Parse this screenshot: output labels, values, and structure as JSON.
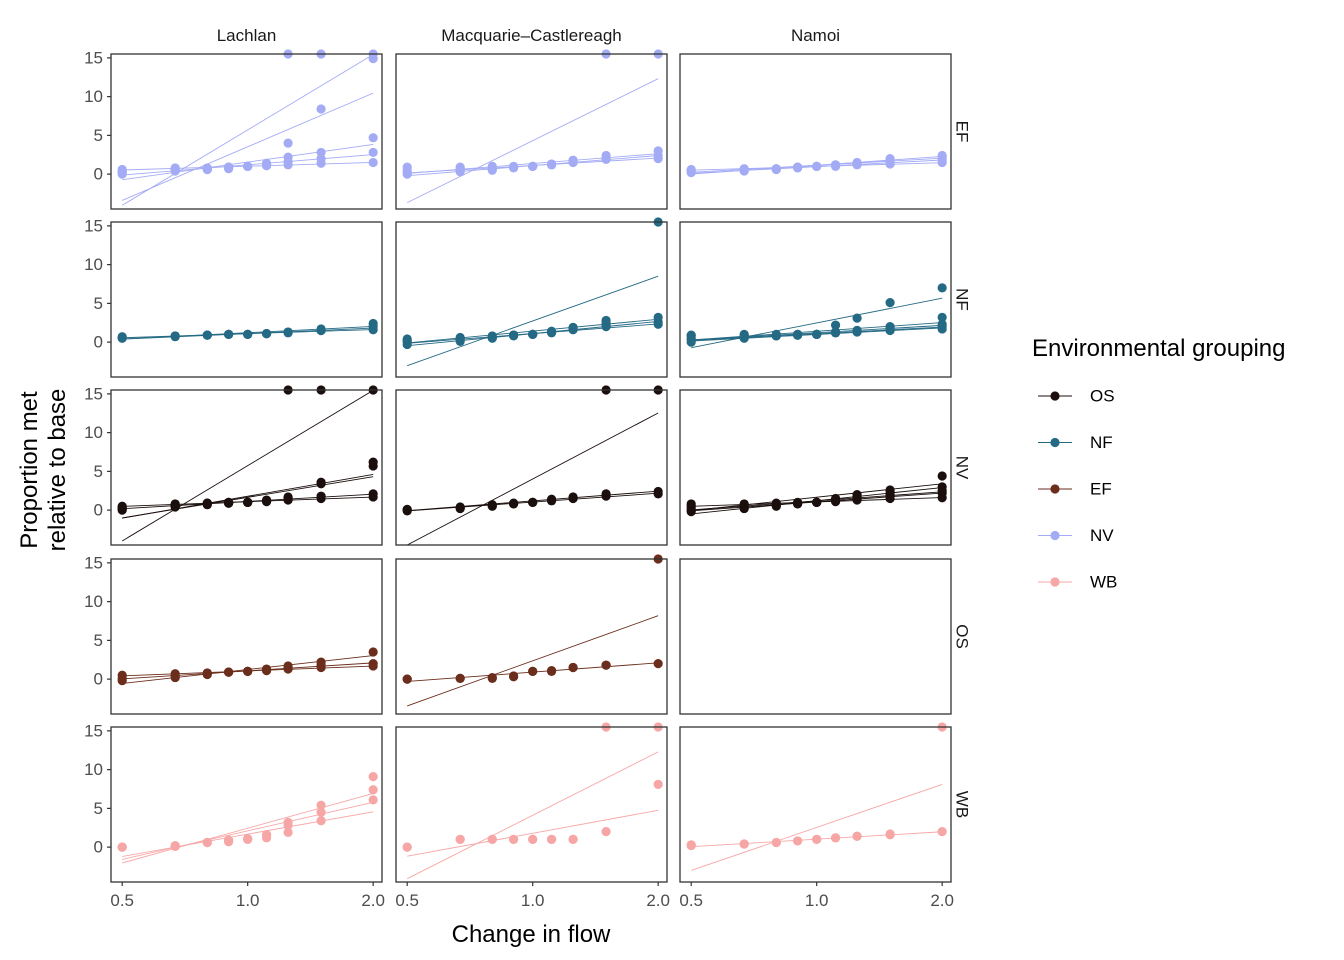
{
  "chart_data": {
    "type": "scatter",
    "facet_columns": [
      "Lachlan",
      "Macquarie–Castlereagh",
      "Namoi"
    ],
    "facet_rows": [
      "EF",
      "NF",
      "NV",
      "OS",
      "WB"
    ],
    "xlabel": "Change in flow",
    "ylabel_lines": [
      "Proportion met",
      "relative to base"
    ],
    "x_scale": "log",
    "xlim": [
      0.47,
      2.1
    ],
    "ylim": [
      -4.5,
      15.5
    ],
    "x_ticks": [
      0.5,
      1.0,
      2.0
    ],
    "x_tick_labels": [
      "0.5",
      "1.0",
      "2.0"
    ],
    "y_ticks": [
      0,
      5,
      10,
      15
    ],
    "y_tick_labels": [
      "0",
      "5",
      "10",
      "15"
    ],
    "x_values": [
      0.5,
      0.67,
      0.8,
      0.9,
      1.0,
      1.11,
      1.25,
      1.5,
      2.0
    ],
    "grid": false,
    "legend": {
      "title": "Environmental grouping",
      "placement": "right",
      "entries": [
        {
          "name": "OS",
          "color": "#1a0f0d"
        },
        {
          "name": "NF",
          "color": "#256a85"
        },
        {
          "name": "EF",
          "color": "#6b2d1c"
        },
        {
          "name": "NV",
          "color": "#a3abf5"
        },
        {
          "name": "WB",
          "color": "#f7a6a6"
        }
      ]
    },
    "panels": [
      {
        "row": "EF",
        "column": "Lachlan",
        "color": "#a3abf5",
        "series": [
          {
            "y": [
              0.6,
              0.8,
              0.7,
              0.9,
              1.0,
              1.1,
              1.2,
              1.4,
              1.5
            ]
          },
          {
            "y": [
              0.2,
              0.5,
              0.6,
              0.8,
              1.0,
              1.3,
              1.6,
              2.0,
              2.8
            ]
          },
          {
            "y": [
              0.0,
              0.4,
              0.6,
              0.9,
              1.0,
              1.4,
              2.2,
              2.8,
              4.7
            ]
          },
          {
            "y": [
              0.3,
              0.6,
              0.7,
              0.7,
              1.0,
              1.2,
              4.0,
              8.4,
              14.9
            ]
          },
          {
            "y": [
              0.4,
              0.7,
              0.8,
              0.9,
              1.0,
              1.1,
              15.5,
              15.5,
              15.5
            ]
          }
        ]
      },
      {
        "row": "EF",
        "column": "Macquarie–Castlereagh",
        "color": "#a3abf5",
        "series": [
          {
            "y": [
              0.0,
              0.3,
              0.5,
              0.8,
              1.0,
              1.3,
              1.6,
              2.0,
              2.4
            ]
          },
          {
            "y": [
              0.3,
              0.5,
              0.7,
              0.9,
              1.0,
              1.2,
              1.5,
              1.9,
              2.0
            ]
          },
          {
            "y": [
              0.6,
              0.7,
              0.8,
              0.9,
              1.0,
              1.2,
              1.7,
              2.4,
              3.0
            ]
          },
          {
            "y": [
              0.9,
              0.9,
              1.0,
              1.0,
              1.0,
              1.3,
              1.8,
              15.5,
              15.5
            ]
          }
        ]
      },
      {
        "row": "EF",
        "column": "Namoi",
        "color": "#a3abf5",
        "series": [
          {
            "y": [
              0.2,
              0.4,
              0.6,
              0.8,
              1.0,
              1.1,
              1.3,
              1.5,
              1.8
            ]
          },
          {
            "y": [
              0.5,
              0.6,
              0.7,
              0.9,
              1.0,
              1.2,
              1.4,
              1.8,
              2.2
            ]
          },
          {
            "y": [
              0.3,
              0.5,
              0.6,
              0.8,
              1.0,
              1.2,
              1.5,
              2.0,
              2.4
            ]
          },
          {
            "y": [
              0.6,
              0.7,
              0.7,
              0.9,
              1.0,
              1.0,
              1.2,
              1.3,
              1.5
            ]
          }
        ]
      },
      {
        "row": "NF",
        "column": "Lachlan",
        "color": "#256a85",
        "series": [
          {
            "y": [
              0.6,
              0.8,
              0.9,
              1.0,
              1.0,
              1.1,
              1.3,
              1.5,
              1.6
            ]
          },
          {
            "y": [
              0.5,
              0.7,
              0.9,
              1.0,
              1.0,
              1.1,
              1.2,
              1.5,
              2.0
            ]
          },
          {
            "y": [
              0.7,
              0.8,
              0.9,
              1.0,
              1.0,
              1.1,
              1.3,
              1.7,
              2.4
            ]
          }
        ]
      },
      {
        "row": "NF",
        "column": "Macquarie–Castlereagh",
        "color": "#256a85",
        "series": [
          {
            "y": [
              -0.3,
              0.1,
              0.5,
              0.8,
              1.0,
              1.3,
              1.7,
              2.2,
              2.6
            ]
          },
          {
            "y": [
              0.0,
              0.3,
              0.6,
              0.9,
              1.0,
              1.2,
              1.6,
              2.0,
              2.3
            ]
          },
          {
            "y": [
              0.4,
              0.6,
              0.8,
              0.9,
              1.0,
              1.3,
              1.8,
              2.8,
              3.2
            ]
          },
          {
            "y": [
              0.2,
              0.5,
              0.7,
              0.9,
              1.0,
              1.4,
              1.9,
              2.5,
              15.5
            ]
          }
        ]
      },
      {
        "row": "NF",
        "column": "Namoi",
        "color": "#256a85",
        "series": [
          {
            "y": [
              0.0,
              0.5,
              0.8,
              0.9,
              1.0,
              1.2,
              1.3,
              1.5,
              1.7
            ]
          },
          {
            "y": [
              0.3,
              0.6,
              0.8,
              0.9,
              1.0,
              1.2,
              1.4,
              1.6,
              2.0
            ]
          },
          {
            "y": [
              0.5,
              0.7,
              0.8,
              0.9,
              1.0,
              1.3,
              1.5,
              1.9,
              2.3
            ]
          },
          {
            "y": [
              0.8,
              0.9,
              0.9,
              1.0,
              1.0,
              1.3,
              1.5,
              2.0,
              3.2
            ]
          },
          {
            "y": [
              0.9,
              1.0,
              1.0,
              1.0,
              1.0,
              2.2,
              3.1,
              5.1,
              7.0
            ]
          }
        ]
      },
      {
        "row": "NV",
        "column": "Lachlan",
        "color": "#1a0f0d",
        "series": [
          {
            "y": [
              0.5,
              0.8,
              0.9,
              1.0,
              1.0,
              1.1,
              1.3,
              1.5,
              1.7
            ]
          },
          {
            "y": [
              0.3,
              0.6,
              0.8,
              0.9,
              1.0,
              1.2,
              1.4,
              1.8,
              2.1
            ]
          },
          {
            "y": [
              0.0,
              0.4,
              0.7,
              0.9,
              1.0,
              1.2,
              1.6,
              3.4,
              5.7
            ]
          },
          {
            "y": [
              0.1,
              0.5,
              0.8,
              0.9,
              1.0,
              1.3,
              1.7,
              3.6,
              6.2
            ]
          },
          {
            "y": [
              0.4,
              0.7,
              0.9,
              1.0,
              1.0,
              1.2,
              15.5,
              15.5,
              15.5
            ]
          }
        ]
      },
      {
        "row": "NV",
        "column": "Macquarie–Castlereagh",
        "color": "#1a0f0d",
        "series": [
          {
            "y": [
              0.0,
              0.3,
              0.6,
              0.8,
              1.0,
              1.3,
              1.5,
              1.8,
              2.1
            ]
          },
          {
            "y": [
              0.1,
              0.4,
              0.7,
              0.9,
              1.0,
              1.4,
              1.7,
              2.1,
              2.4
            ]
          },
          {
            "y": [
              -0.1,
              0.2,
              0.5,
              0.8,
              1.0,
              1.2,
              1.6,
              15.5,
              15.5
            ]
          }
        ]
      },
      {
        "row": "NV",
        "column": "Namoi",
        "color": "#1a0f0d",
        "series": [
          {
            "y": [
              0.0,
              0.4,
              0.6,
              0.8,
              1.0,
              1.2,
              1.5,
              1.8,
              2.2
            ]
          },
          {
            "y": [
              0.3,
              0.5,
              0.7,
              0.9,
              1.0,
              1.3,
              1.6,
              2.0,
              2.5
            ]
          },
          {
            "y": [
              0.6,
              0.7,
              0.8,
              0.9,
              1.0,
              1.1,
              1.3,
              1.5,
              1.6
            ]
          },
          {
            "y": [
              -0.2,
              0.2,
              0.5,
              0.8,
              1.0,
              1.4,
              1.8,
              2.4,
              3.0
            ]
          },
          {
            "y": [
              0.8,
              0.8,
              0.9,
              1.0,
              1.0,
              1.5,
              2.0,
              2.6,
              4.4
            ]
          }
        ]
      },
      {
        "row": "OS",
        "column": "Lachlan",
        "color": "#6b2d1c",
        "series": [
          {
            "y": [
              0.1,
              0.4,
              0.7,
              0.9,
              1.0,
              1.2,
              1.5,
              1.8,
              2.0
            ]
          },
          {
            "y": [
              0.5,
              0.7,
              0.8,
              0.9,
              1.0,
              1.1,
              1.3,
              1.5,
              1.7
            ]
          },
          {
            "y": [
              -0.2,
              0.2,
              0.6,
              0.9,
              1.0,
              1.3,
              1.7,
              2.2,
              3.5
            ]
          }
        ]
      },
      {
        "row": "OS",
        "column": "Macquarie–Castlereagh",
        "color": "#6b2d1c",
        "series": [
          {
            "y": [
              0.0,
              0.1,
              0.2,
              0.4,
              1.0,
              1.1,
              1.5,
              1.8,
              2.0
            ]
          },
          {
            "y": [
              0.0,
              0.1,
              0.1,
              0.3,
              1.0,
              1.0,
              1.5,
              1.8,
              15.5
            ]
          }
        ]
      },
      {
        "row": "OS",
        "column": "Namoi",
        "color": "#6b2d1c",
        "series": []
      },
      {
        "row": "WB",
        "column": "Lachlan",
        "color": "#f7a6a6",
        "series": [
          {
            "y": [
              0.0,
              0.2,
              0.6,
              0.7,
              1.0,
              1.2,
              1.9,
              3.4,
              6.1
            ]
          },
          {
            "y": [
              0.0,
              0.1,
              0.6,
              0.9,
              1.0,
              1.6,
              2.8,
              4.5,
              7.4
            ]
          },
          {
            "y": [
              0.0,
              0.1,
              0.6,
              0.9,
              1.1,
              1.6,
              3.2,
              5.4,
              9.1
            ]
          }
        ]
      },
      {
        "row": "WB",
        "column": "Macquarie–Castlereagh",
        "color": "#f7a6a6",
        "series": [
          {
            "y": [
              0.0,
              1.0,
              1.0,
              1.0,
              1.0,
              1.0,
              1.0,
              2.0,
              8.1
            ]
          },
          {
            "y": [
              0.0,
              1.0,
              1.0,
              1.0,
              1.0,
              1.0,
              1.0,
              15.5,
              15.5
            ]
          }
        ]
      },
      {
        "row": "WB",
        "column": "Namoi",
        "color": "#f7a6a6",
        "series": [
          {
            "y": [
              0.2,
              0.4,
              0.6,
              0.8,
              1.0,
              1.2,
              1.4,
              1.6,
              2.0
            ]
          },
          {
            "y": [
              0.3,
              0.4,
              0.6,
              0.8,
              1.0,
              1.2,
              1.4,
              1.7,
              15.5
            ]
          }
        ]
      }
    ]
  }
}
